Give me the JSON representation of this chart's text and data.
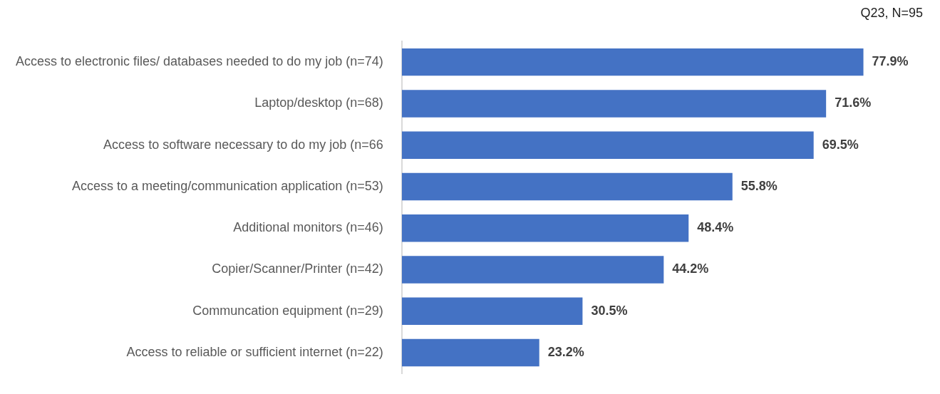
{
  "chart_data": {
    "type": "bar",
    "orientation": "horizontal",
    "categories": [
      "Access to electronic files/ databases needed to do my job (n=74)",
      "Laptop/desktop (n=68)",
      "Access to software necessary to do my job (n=66",
      "Access to a meeting/communication application (n=53)",
      "Additional monitors (n=46)",
      "Copier/Scanner/Printer (n=42)",
      "Communcation equipment (n=29)",
      "Access to reliable or sufficient internet (n=22)"
    ],
    "values": [
      77.9,
      71.6,
      69.5,
      55.8,
      48.4,
      44.2,
      30.5,
      23.2
    ],
    "value_labels": [
      "77.9%",
      "71.6%",
      "69.5%",
      "55.8%",
      "48.4%",
      "44.2%",
      "30.5%",
      "23.2%"
    ],
    "color": "#4472c4",
    "annotations": [
      "Q23, N=95"
    ]
  }
}
